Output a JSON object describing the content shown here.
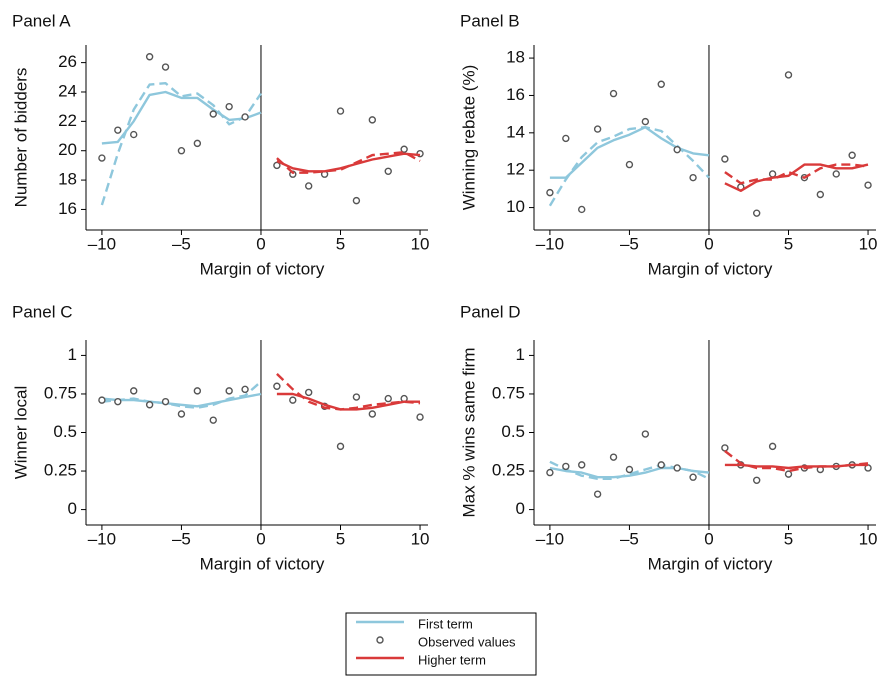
{
  "chart_data": [
    {
      "type": "line",
      "title": "Panel A",
      "xlabel": "Margin of victory",
      "ylabel": "Number of bidders",
      "xlim": [
        -11,
        10.5
      ],
      "ylim": [
        14.6,
        27.2
      ],
      "xticks": [
        {
          "value": -10,
          "label": "–10"
        },
        {
          "value": -5,
          "label": "–5"
        },
        0,
        5,
        10
      ],
      "yticks": [
        16,
        18,
        20,
        22,
        24,
        26
      ],
      "cutoff": 0,
      "series": [
        {
          "name": "First term",
          "color": "#8ec7dc",
          "style": "line",
          "x": [
            -10,
            -9,
            -8,
            -7,
            -6,
            -5,
            -4,
            -3,
            -2,
            -1,
            0
          ],
          "values": [
            20.5,
            20.6,
            22.0,
            23.8,
            24.0,
            23.6,
            23.6,
            22.8,
            22.1,
            22.2,
            22.6
          ],
          "dashed_values": [
            16.3,
            19.8,
            22.8,
            24.5,
            24.6,
            23.7,
            23.9,
            23.1,
            21.8,
            22.3,
            23.9
          ]
        },
        {
          "name": "Observed values",
          "color": "#555555",
          "style": "markers",
          "x": [
            -10,
            -9,
            -8,
            -7,
            -6,
            -5,
            -4,
            -3,
            -2,
            -1,
            1,
            2,
            3,
            4,
            5,
            6,
            7,
            8,
            9,
            10
          ],
          "values": [
            19.5,
            21.4,
            21.1,
            26.4,
            25.7,
            20.0,
            20.5,
            22.5,
            23.0,
            22.3,
            19.0,
            18.4,
            17.6,
            18.4,
            22.7,
            16.6,
            22.1,
            18.6,
            20.1,
            19.8
          ]
        },
        {
          "name": "Higher term",
          "color": "#d93a3a",
          "style": "line",
          "x": [
            1,
            2,
            3,
            4,
            5,
            6,
            7,
            8,
            9,
            10
          ],
          "values": [
            19.3,
            18.8,
            18.6,
            18.6,
            18.8,
            19.1,
            19.4,
            19.6,
            19.8,
            19.7
          ],
          "dashed_values": [
            19.5,
            18.5,
            18.5,
            18.6,
            18.7,
            19.2,
            19.7,
            19.8,
            19.9,
            19.3
          ]
        }
      ]
    },
    {
      "type": "line",
      "title": "Panel B",
      "xlabel": "Margin of victory",
      "ylabel": "Winning rebate (%)",
      "xlim": [
        -11,
        10.5
      ],
      "ylim": [
        8.8,
        18.7
      ],
      "xticks": [
        {
          "value": -10,
          "label": "–10"
        },
        {
          "value": -5,
          "label": "–5"
        },
        0,
        5,
        10
      ],
      "yticks": [
        10,
        12,
        14,
        16,
        18
      ],
      "cutoff": 0,
      "series": [
        {
          "name": "First term",
          "color": "#8ec7dc",
          "style": "line",
          "x": [
            -10,
            -9,
            -8,
            -7,
            -6,
            -5,
            -4,
            -3,
            -2,
            -1,
            0
          ],
          "values": [
            11.6,
            11.6,
            12.4,
            13.2,
            13.6,
            13.9,
            14.3,
            13.7,
            13.2,
            12.9,
            12.8
          ],
          "dashed_values": [
            10.1,
            11.5,
            12.7,
            13.5,
            13.8,
            14.2,
            14.3,
            14.1,
            13.3,
            12.5,
            11.6
          ]
        },
        {
          "name": "Observed values",
          "color": "#555555",
          "style": "markers",
          "x": [
            -10,
            -9,
            -8,
            -7,
            -6,
            -5,
            -4,
            -3,
            -2,
            -1,
            1,
            2,
            3,
            4,
            5,
            6,
            7,
            8,
            9,
            10
          ],
          "values": [
            10.8,
            13.7,
            9.9,
            14.2,
            16.1,
            12.3,
            14.6,
            16.6,
            13.1,
            11.6,
            12.6,
            11.1,
            9.7,
            11.8,
            17.1,
            11.6,
            10.7,
            11.8,
            12.8,
            11.2
          ]
        },
        {
          "name": "Higher term",
          "color": "#d93a3a",
          "style": "line",
          "x": [
            1,
            2,
            3,
            4,
            5,
            6,
            7,
            8,
            9,
            10
          ],
          "values": [
            11.3,
            10.9,
            11.4,
            11.6,
            11.7,
            12.3,
            12.3,
            12.1,
            12.1,
            12.3
          ],
          "dashed_values": [
            11.9,
            11.3,
            11.5,
            11.5,
            11.9,
            11.6,
            12.1,
            12.3,
            12.3,
            12.2
          ]
        }
      ]
    },
    {
      "type": "line",
      "title": "Panel C",
      "xlabel": "Margin of victory",
      "ylabel": "Winner local",
      "xlim": [
        -11,
        10.5
      ],
      "ylim": [
        -0.1,
        1.1
      ],
      "xticks": [
        {
          "value": -10,
          "label": "–10"
        },
        {
          "value": -5,
          "label": "–5"
        },
        0,
        5,
        10
      ],
      "yticks": [
        0,
        0.25,
        0.5,
        0.75,
        1
      ],
      "cutoff": 0,
      "series": [
        {
          "name": "First term",
          "color": "#8ec7dc",
          "style": "line",
          "x": [
            -10,
            -9,
            -8,
            -7,
            -6,
            -5,
            -4,
            -3,
            -2,
            -1,
            0
          ],
          "values": [
            0.72,
            0.71,
            0.71,
            0.7,
            0.69,
            0.68,
            0.67,
            0.69,
            0.71,
            0.73,
            0.75
          ],
          "dashed_values": [
            0.7,
            0.71,
            0.72,
            0.7,
            0.69,
            0.67,
            0.66,
            0.68,
            0.72,
            0.74,
            0.83
          ]
        },
        {
          "name": "Observed values",
          "color": "#555555",
          "style": "markers",
          "x": [
            -10,
            -9,
            -8,
            -7,
            -6,
            -5,
            -4,
            -3,
            -2,
            -1,
            1,
            2,
            3,
            4,
            5,
            6,
            7,
            8,
            9,
            10
          ],
          "values": [
            0.71,
            0.7,
            0.77,
            0.68,
            0.7,
            0.62,
            0.77,
            0.58,
            0.77,
            0.78,
            0.8,
            0.71,
            0.76,
            0.67,
            0.41,
            0.73,
            0.62,
            0.72,
            0.72,
            0.6
          ]
        },
        {
          "name": "Higher term",
          "color": "#d93a3a",
          "style": "line",
          "x": [
            1,
            2,
            3,
            4,
            5,
            6,
            7,
            8,
            9,
            10
          ],
          "values": [
            0.75,
            0.75,
            0.72,
            0.68,
            0.65,
            0.65,
            0.66,
            0.68,
            0.7,
            0.7
          ],
          "dashed_values": [
            0.88,
            0.78,
            0.7,
            0.66,
            0.65,
            0.66,
            0.68,
            0.69,
            0.7,
            0.69
          ]
        }
      ]
    },
    {
      "type": "line",
      "title": "Panel D",
      "xlabel": "Margin of victory",
      "ylabel": "Max % wins same firm",
      "xlim": [
        -11,
        10.5
      ],
      "ylim": [
        -0.1,
        1.1
      ],
      "xticks": [
        {
          "value": -10,
          "label": "–10"
        },
        {
          "value": -5,
          "label": "–5"
        },
        0,
        5,
        10
      ],
      "yticks": [
        0,
        0.25,
        0.5,
        0.75,
        1
      ],
      "cutoff": 0,
      "series": [
        {
          "name": "First term",
          "color": "#8ec7dc",
          "style": "line",
          "x": [
            -10,
            -9,
            -8,
            -7,
            -6,
            -5,
            -4,
            -3,
            -2,
            -1,
            0
          ],
          "values": [
            0.27,
            0.25,
            0.24,
            0.21,
            0.21,
            0.22,
            0.24,
            0.27,
            0.27,
            0.25,
            0.24
          ],
          "dashed_values": [
            0.31,
            0.26,
            0.22,
            0.2,
            0.2,
            0.23,
            0.26,
            0.29,
            0.27,
            0.25,
            0.2
          ]
        },
        {
          "name": "Observed values",
          "color": "#555555",
          "style": "markers",
          "x": [
            -10,
            -9,
            -8,
            -7,
            -6,
            -5,
            -4,
            -3,
            -2,
            -1,
            1,
            2,
            3,
            4,
            5,
            6,
            7,
            8,
            9,
            10
          ],
          "values": [
            0.24,
            0.28,
            0.29,
            0.1,
            0.34,
            0.26,
            0.49,
            0.29,
            0.27,
            0.21,
            0.4,
            0.29,
            0.19,
            0.41,
            0.23,
            0.27,
            0.26,
            0.28,
            0.29,
            0.27
          ]
        },
        {
          "name": "Higher term",
          "color": "#d93a3a",
          "style": "line",
          "x": [
            1,
            2,
            3,
            4,
            5,
            6,
            7,
            8,
            9,
            10
          ],
          "values": [
            0.29,
            0.29,
            0.28,
            0.28,
            0.27,
            0.28,
            0.28,
            0.28,
            0.29,
            0.29
          ],
          "dashed_values": [
            0.38,
            0.3,
            0.27,
            0.27,
            0.25,
            0.27,
            0.28,
            0.28,
            0.29,
            0.3
          ]
        }
      ]
    }
  ]
}
